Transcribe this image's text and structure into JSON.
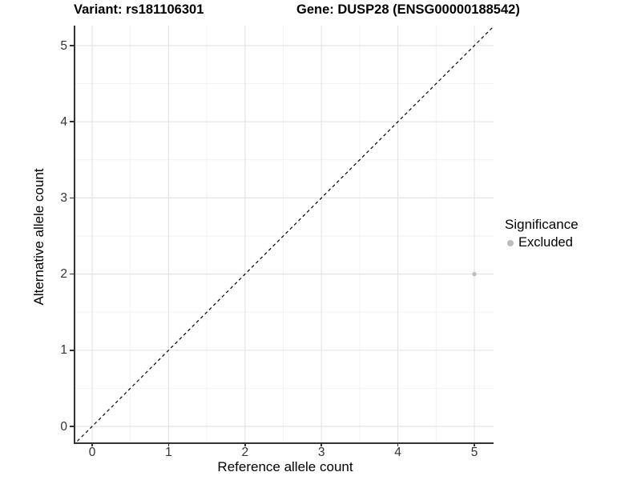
{
  "chart_data": {
    "type": "scatter",
    "titles": {
      "left": "Variant: rs181106301",
      "right": "Gene: DUSP28 (ENSG00000188542)"
    },
    "xlabel": "Reference allele count",
    "ylabel": "Alternative allele count",
    "x_ticks": [
      "0",
      "1",
      "2",
      "3",
      "4",
      "5"
    ],
    "y_ticks": [
      "0",
      "1",
      "2",
      "3",
      "4",
      "5"
    ],
    "x_tick_values": [
      0,
      1,
      2,
      3,
      4,
      5
    ],
    "y_tick_values": [
      0,
      1,
      2,
      3,
      4,
      5
    ],
    "xlim": [
      -0.25,
      5.25
    ],
    "ylim": [
      -0.25,
      5.25
    ],
    "grid": {
      "major": true,
      "minor": true,
      "major_color": "#e4e4e4",
      "minor_color": "#f2f2f2"
    },
    "reference_line": {
      "shape": "diagonal-y-equals-x",
      "style": "dashed",
      "color": "#000000"
    },
    "series": [
      {
        "name": "Excluded",
        "color": "#bdbdbd",
        "points": [
          [
            5,
            2
          ]
        ]
      }
    ],
    "legend": {
      "title": "Significance",
      "position": "right",
      "items": [
        {
          "label": "Excluded",
          "color": "#bdbdbd"
        }
      ]
    },
    "colors": {
      "axis_line": "#333333",
      "tick_label": "#333333",
      "background": "#ffffff"
    }
  }
}
